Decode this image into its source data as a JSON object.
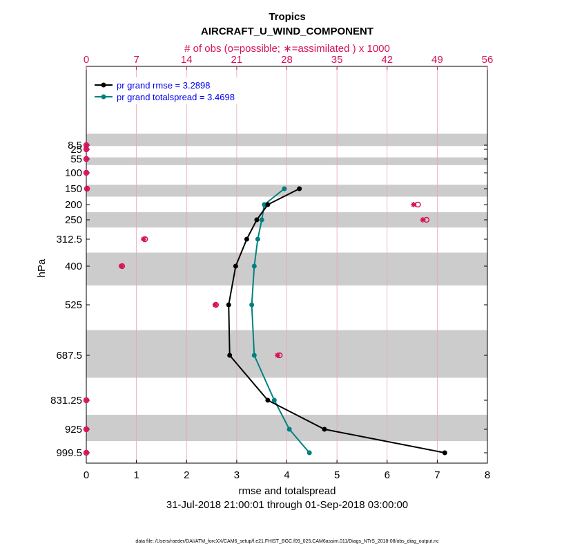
{
  "colors": {
    "rmse": "#000000",
    "spread": "#008080",
    "obs": "#d6105a",
    "band": "#cccccc",
    "legend_text": "#0000ee"
  },
  "chart_data": {
    "type": "line",
    "title": "Tropics",
    "subtitle": "AIRCRAFT_U_WIND_COMPONENT",
    "top_axis_label": "# of obs (o=possible; ∗=assimilated ) x 1000",
    "xlabel": "rmse and totalspread",
    "ylabel": "hPa",
    "date_range": "31-Jul-2018 21:00:01 through 01-Sep-2018 03:00:00",
    "footer": "data file: /Users/raeder/DAI/ATM_forcXX/CAM6_setup/f.e21.FHIST_BGC.f09_025.CAM6assim.011/Diags_NTrS_2018-08/obs_diag_output.nc",
    "xlim": [
      0,
      8
    ],
    "x_ticks": [
      "0",
      "1",
      "2",
      "3",
      "4",
      "5",
      "6",
      "7",
      "8"
    ],
    "top_xlim": [
      0,
      56
    ],
    "top_ticks": [
      "0",
      "7",
      "14",
      "21",
      "28",
      "35",
      "42",
      "49",
      "56"
    ],
    "levels": [
      8.5,
      25,
      55,
      100,
      150,
      200,
      250,
      312.5,
      400,
      525,
      687.5,
      831.25,
      925,
      999.5
    ],
    "level_labels": [
      "8.5",
      "25",
      "55",
      "100",
      "150",
      "200",
      "250",
      "312.5",
      "400",
      "525",
      "687.5",
      "831.25",
      "925",
      "999.5"
    ],
    "shaded_bands": [
      [
        5,
        12
      ],
      [
        50,
        75
      ],
      [
        137.5,
        175
      ],
      [
        225,
        275
      ],
      [
        356.25,
        462.5
      ],
      [
        606.25,
        759.375
      ],
      [
        878.125,
        962.25
      ]
    ],
    "series": [
      {
        "name": "pr grand rmse",
        "legend": "pr grand rmse = 3.2898",
        "levels": [
          150,
          200,
          250,
          312.5,
          400,
          525,
          687.5,
          831.25,
          925,
          999.5
        ],
        "values": [
          4.25,
          3.62,
          3.4,
          3.2,
          2.98,
          2.84,
          2.86,
          3.62,
          4.75,
          7.15
        ]
      },
      {
        "name": "pr grand totalspread",
        "legend": "pr grand totalspread = 3.4698",
        "levels": [
          150,
          200,
          250,
          312.5,
          400,
          525,
          687.5,
          831.25,
          925,
          999.5
        ],
        "values": [
          3.95,
          3.55,
          3.5,
          3.42,
          3.35,
          3.3,
          3.35,
          3.75,
          4.05,
          4.45
        ]
      }
    ],
    "obs_possible": {
      "name": "possible",
      "levels": [
        8.5,
        25,
        55,
        100,
        150,
        200,
        250,
        312.5,
        400,
        525,
        687.5,
        831.25,
        925,
        999.5
      ],
      "values": [
        0,
        0,
        0,
        0,
        0.1,
        46.3,
        47.5,
        8.2,
        5.0,
        18.1,
        27.0,
        0,
        0,
        0
      ]
    },
    "obs_assimilated": {
      "name": "assimilated",
      "levels": [
        8.5,
        25,
        55,
        100,
        150,
        200,
        250,
        312.5,
        400,
        525,
        687.5,
        831.25,
        925,
        999.5
      ],
      "values": [
        0,
        0,
        0,
        0,
        0.1,
        45.7,
        47.0,
        8.0,
        4.9,
        18.0,
        26.7,
        0,
        0,
        0
      ]
    }
  }
}
